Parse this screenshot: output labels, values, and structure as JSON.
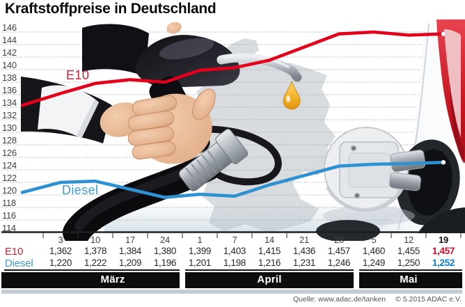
{
  "title": "Kraftstoffpreise in Deutschland",
  "source": {
    "left": "Quelle: www.adac.de/tanken",
    "right": "© 5.2015  ADAC e.V."
  },
  "colors": {
    "e10_line": "#e2001a",
    "diesel_line": "#2d91d2",
    "e10_label": "#cc2038",
    "diesel_label": "#3f9ad2",
    "e10_bold": "#d40f22",
    "diesel_bold": "#0b7fc4",
    "grid": "#9aa0a6",
    "axis_text": "#3f4245",
    "month_bar_bg": "#0d0d0f",
    "month_bar_text": "#ffffff"
  },
  "icons": {
    "photo_left": "hand-with-fuel-nozzle",
    "photo_middle": "germany-map-silhouette",
    "photo_right": "car-fuel-filler-door",
    "drop": "fuel-drop-icon"
  },
  "chart_data": {
    "type": "line",
    "title": "Kraftstoffpreise in Deutschland",
    "y_unit": "Cent je Liter (Achse), Tabellenwerte in Euro",
    "ylim": [
      114,
      146
    ],
    "ytick_step": 2,
    "grid": true,
    "legend_position": "inline-on-lines",
    "x_tick_labels": [
      "3",
      "10",
      "17",
      "24",
      "1",
      "7",
      "14",
      "21",
      "28",
      "5",
      "12",
      "19"
    ],
    "months": [
      {
        "label": "März",
        "columns": 4
      },
      {
        "label": "April",
        "columns": 5
      },
      {
        "label": "Mai",
        "columns": 3
      }
    ],
    "series": [
      {
        "name": "E10",
        "color": "#e2001a",
        "values": [
          1.362,
          1.378,
          1.384,
          1.38,
          1.399,
          1.403,
          1.415,
          1.436,
          1.457,
          1.46,
          1.455,
          1.457
        ],
        "lead_value": 1.343
      },
      {
        "name": "Diesel",
        "color": "#2d91d2",
        "values": [
          1.22,
          1.222,
          1.209,
          1.196,
          1.201,
          1.198,
          1.216,
          1.231,
          1.246,
          1.249,
          1.25,
          1.252
        ],
        "lead_value": 1.204
      }
    ]
  }
}
